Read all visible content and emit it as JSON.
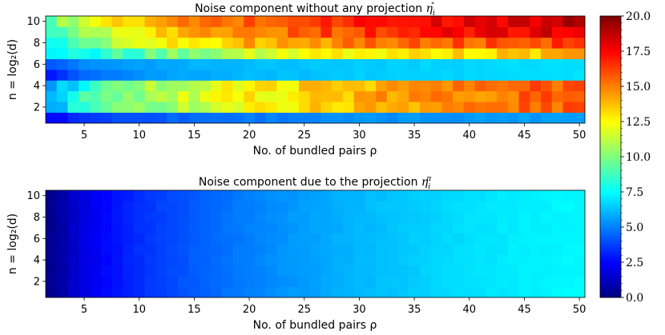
{
  "chart_data": [
    {
      "type": "heatmap",
      "title": "Noise component without any projection η_i°",
      "title_text": "Noise component without any projection ",
      "title_math": "η",
      "title_sub": "i",
      "title_sup": "°",
      "xlabel": "No. of bundled pairs ρ",
      "ylabel": "n = log₂(d)",
      "x_ticks": [
        "5",
        "10",
        "15",
        "20",
        "25",
        "30",
        "35",
        "40",
        "45",
        "50"
      ],
      "y_ticks": [
        "2",
        "4",
        "6",
        "8",
        "10"
      ],
      "x": [
        2,
        3,
        4,
        5,
        6,
        7,
        8,
        9,
        10,
        11,
        12,
        13,
        14,
        15,
        16,
        17,
        18,
        19,
        20,
        21,
        22,
        23,
        24,
        25,
        26,
        27,
        28,
        29,
        30,
        31,
        32,
        33,
        34,
        35,
        36,
        37,
        38,
        39,
        40,
        41,
        42,
        43,
        44,
        45,
        46,
        47,
        48,
        49,
        50
      ],
      "y": [
        1,
        2,
        3,
        4,
        5,
        6,
        7,
        8,
        9,
        10
      ],
      "xlim": [
        1.5,
        50.5
      ],
      "ylim": [
        0.5,
        10.5
      ],
      "row_values_at": {
        "x": [
          2,
          5,
          10,
          15,
          20,
          25,
          30,
          35,
          40,
          45,
          50
        ],
        "rows": [
          {
            "n": 10,
            "values": [
              9.5,
              12.0,
              13.5,
              15.0,
              15.6,
              16.3,
              17.0,
              17.4,
              17.8,
              18.3,
              18.8
            ]
          },
          {
            "n": 9,
            "values": [
              8.5,
              11.0,
              12.8,
              14.2,
              15.0,
              15.6,
              16.4,
              16.8,
              17.4,
              17.8,
              18.0
            ]
          },
          {
            "n": 8,
            "values": [
              7.5,
              10.0,
              12.0,
              13.0,
              14.0,
              14.6,
              15.0,
              15.5,
              15.8,
              16.0,
              16.3
            ]
          },
          {
            "n": 7,
            "values": [
              6.5,
              8.0,
              9.0,
              10.5,
              11.5,
              12.0,
              12.5,
              13.0,
              13.2,
              13.5,
              13.8
            ]
          },
          {
            "n": 6,
            "values": [
              4.2,
              5.2,
              5.6,
              6.0,
              6.2,
              6.4,
              6.5,
              6.6,
              6.7,
              6.8,
              6.9
            ]
          },
          {
            "n": 5,
            "values": [
              3.0,
              4.6,
              5.4,
              5.8,
              6.1,
              6.3,
              6.5,
              6.6,
              6.7,
              6.8,
              6.9
            ]
          },
          {
            "n": 4,
            "values": [
              5.0,
              8.0,
              10.5,
              11.5,
              12.6,
              13.3,
              14.0,
              14.6,
              15.0,
              15.5,
              16.0
            ]
          },
          {
            "n": 3,
            "values": [
              6.0,
              9.5,
              10.5,
              11.5,
              12.5,
              13.3,
              14.0,
              14.6,
              15.0,
              15.5,
              16.0
            ]
          },
          {
            "n": 2,
            "values": [
              5.5,
              8.5,
              10.0,
              11.3,
              12.3,
              13.2,
              13.8,
              14.5,
              15.0,
              15.4,
              15.8
            ]
          },
          {
            "n": 1,
            "values": [
              2.5,
              3.6,
              4.2,
              4.6,
              4.9,
              5.1,
              5.3,
              5.4,
              5.5,
              5.6,
              5.7
            ]
          }
        ]
      },
      "colormap": "jet",
      "vmin": 0,
      "vmax": 20
    },
    {
      "type": "heatmap",
      "title": "Noise component due to the projection η_i^π",
      "title_text": "Noise component due to the projection ",
      "title_math": "η",
      "title_sub": "i",
      "title_sup": "π",
      "xlabel": "No. of bundled pairs ρ",
      "ylabel": "n = log₂(d)",
      "x_ticks": [
        "5",
        "10",
        "15",
        "20",
        "25",
        "30",
        "35",
        "40",
        "45",
        "50"
      ],
      "y_ticks": [
        "2",
        "4",
        "6",
        "8",
        "10"
      ],
      "xlim": [
        1.5,
        50.5
      ],
      "ylim": [
        0.5,
        10.5
      ],
      "value_at_x": {
        "x": [
          2,
          3,
          4,
          5,
          7,
          10,
          15,
          20,
          25,
          30,
          35,
          40,
          45,
          50
        ],
        "values": [
          0.3,
          0.8,
          1.4,
          1.9,
          2.6,
          3.4,
          4.3,
          5.0,
          5.6,
          6.1,
          6.5,
          6.9,
          7.2,
          7.4
        ]
      },
      "colormap": "jet",
      "vmin": 0,
      "vmax": 20
    }
  ],
  "colorbar": {
    "min": 0,
    "max": 20,
    "tick_labels": [
      "0.0",
      "2.5",
      "5.0",
      "7.5",
      "10.0",
      "12.5",
      "15.0",
      "17.5",
      "20.0"
    ]
  }
}
